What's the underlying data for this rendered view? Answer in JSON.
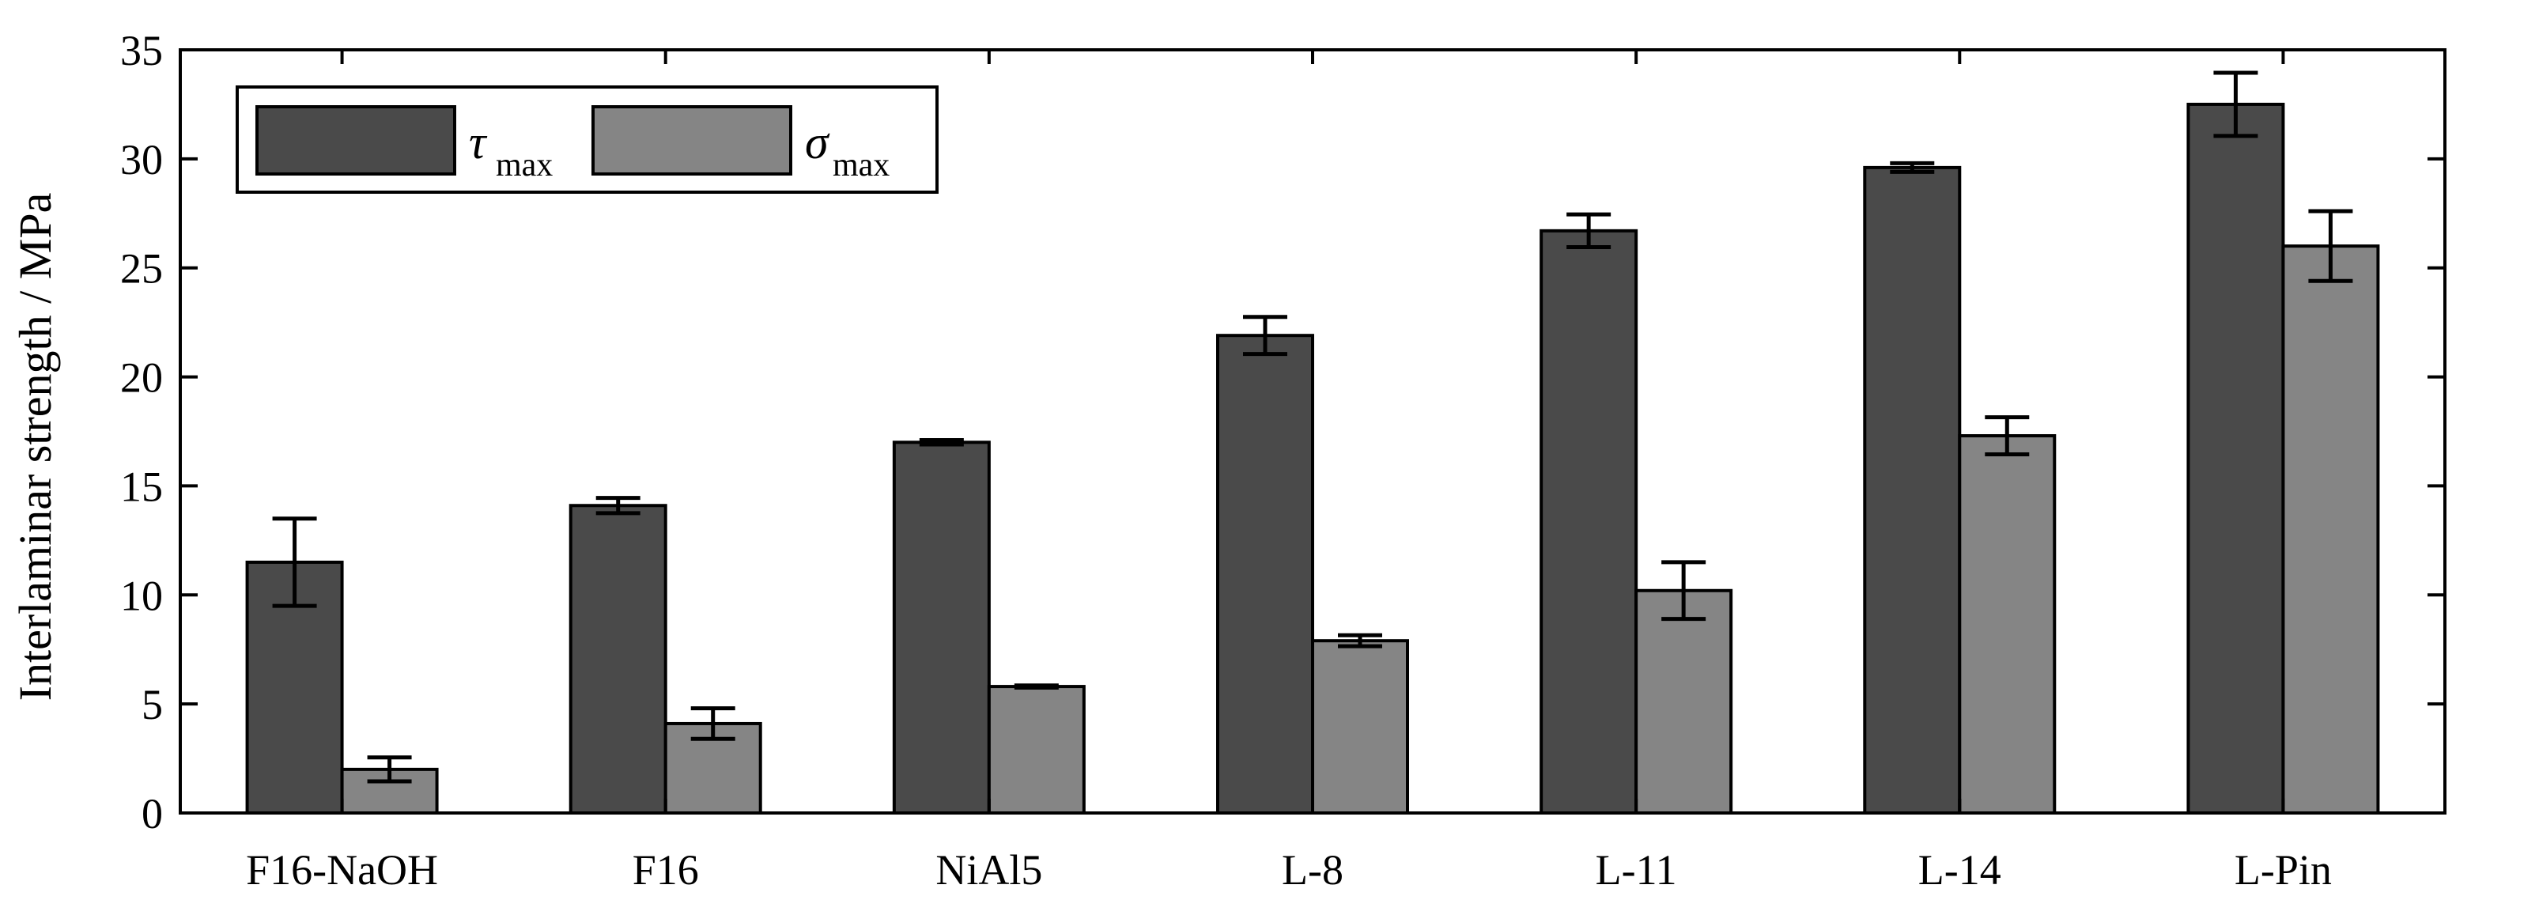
{
  "chart_data": {
    "type": "bar",
    "title": "",
    "xlabel": "",
    "ylabel": "Interlaminar strength / MPa",
    "ylim": [
      0,
      35
    ],
    "yticks": [
      0,
      5,
      10,
      15,
      20,
      25,
      30,
      35
    ],
    "grid": false,
    "legend_position": "top-left",
    "categories": [
      "F16-NaOH",
      "F16",
      "NiAl5",
      "L-8",
      "L-11",
      "L-14",
      "L-Pin"
    ],
    "series": [
      {
        "name": "τ",
        "name_sub": "max",
        "color": "#4a4a4a",
        "values": [
          11.5,
          14.1,
          17.0,
          21.9,
          26.7,
          29.6,
          32.5
        ],
        "errors": [
          2.0,
          0.35,
          0.1,
          0.85,
          0.75,
          0.2,
          1.45
        ]
      },
      {
        "name": "σ",
        "name_sub": "max",
        "color": "#858585",
        "values": [
          2.0,
          4.1,
          5.8,
          7.9,
          10.2,
          17.3,
          26.0
        ],
        "errors": [
          0.55,
          0.7,
          0.05,
          0.25,
          1.3,
          0.85,
          1.6
        ]
      }
    ]
  }
}
